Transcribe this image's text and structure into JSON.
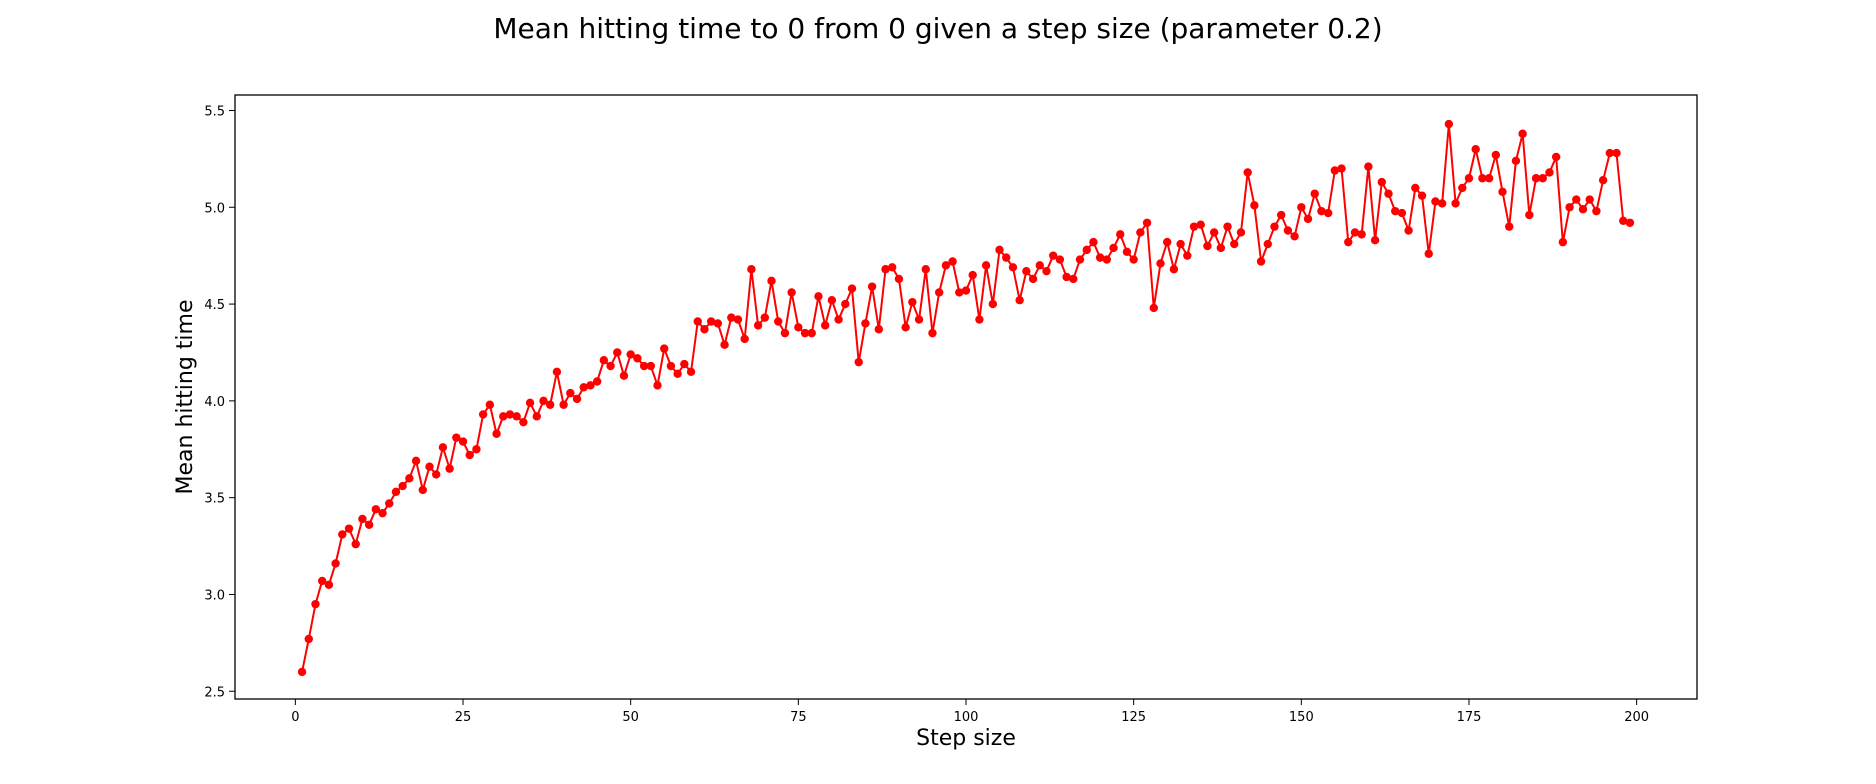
{
  "chart_data": {
    "type": "line",
    "title": "Mean hitting time to 0 from 0 given a step size (parameter 0.2)",
    "xlabel": "Step size",
    "ylabel": "Mean hitting time",
    "xlim": [
      -9,
      209
    ],
    "ylim": [
      2.46,
      5.58
    ],
    "xticks": [
      0,
      25,
      50,
      75,
      100,
      125,
      150,
      175,
      200
    ],
    "yticks": [
      2.5,
      3.0,
      3.5,
      4.0,
      4.5,
      5.0,
      5.5
    ],
    "xtick_labels": [
      "0",
      "25",
      "50",
      "75",
      "100",
      "125",
      "150",
      "175",
      "200"
    ],
    "ytick_labels": [
      "2.5",
      "3.0",
      "3.5",
      "4.0",
      "4.5",
      "5.0",
      "5.5"
    ],
    "grid": false,
    "legend": "none",
    "series": [
      {
        "color": "#ff0000",
        "marker": "circle",
        "x": [
          1,
          2,
          3,
          4,
          5,
          6,
          7,
          8,
          9,
          10,
          11,
          12,
          13,
          14,
          15,
          16,
          17,
          18,
          19,
          20,
          21,
          22,
          23,
          24,
          25,
          26,
          27,
          28,
          29,
          30,
          31,
          32,
          33,
          34,
          35,
          36,
          37,
          38,
          39,
          40,
          41,
          42,
          43,
          44,
          45,
          46,
          47,
          48,
          49,
          50,
          51,
          52,
          53,
          54,
          55,
          56,
          57,
          58,
          59,
          60,
          61,
          62,
          63,
          64,
          65,
          66,
          67,
          68,
          69,
          70,
          71,
          72,
          73,
          74,
          75,
          76,
          77,
          78,
          79,
          80,
          81,
          82,
          83,
          84,
          85,
          86,
          87,
          88,
          89,
          90,
          91,
          92,
          93,
          94,
          95,
          96,
          97,
          98,
          99,
          100,
          101,
          102,
          103,
          104,
          105,
          106,
          107,
          108,
          109,
          110,
          111,
          112,
          113,
          114,
          115,
          116,
          117,
          118,
          119,
          120,
          121,
          122,
          123,
          124,
          125,
          126,
          127,
          128,
          129,
          130,
          131,
          132,
          133,
          134,
          135,
          136,
          137,
          138,
          139,
          140,
          141,
          142,
          143,
          144,
          145,
          146,
          147,
          148,
          149,
          150,
          151,
          152,
          153,
          154,
          155,
          156,
          157,
          158,
          159,
          160,
          161,
          162,
          163,
          164,
          165,
          166,
          167,
          168,
          169,
          170,
          171,
          172,
          173,
          174,
          175,
          176,
          177,
          178,
          179,
          180,
          181,
          182,
          183,
          184,
          185,
          186,
          187,
          188,
          189,
          190,
          191,
          192,
          193,
          194,
          195,
          196,
          197,
          198,
          199
        ],
        "y": [
          2.6,
          2.77,
          2.95,
          3.07,
          3.05,
          3.16,
          3.31,
          3.34,
          3.26,
          3.39,
          3.36,
          3.44,
          3.42,
          3.47,
          3.53,
          3.56,
          3.6,
          3.69,
          3.54,
          3.66,
          3.62,
          3.76,
          3.65,
          3.81,
          3.79,
          3.72,
          3.75,
          3.93,
          3.98,
          3.83,
          3.92,
          3.93,
          3.92,
          3.89,
          3.99,
          3.92,
          4.0,
          3.98,
          4.15,
          3.98,
          4.04,
          4.01,
          4.07,
          4.08,
          4.1,
          4.21,
          4.18,
          4.25,
          4.13,
          4.24,
          4.22,
          4.18,
          4.18,
          4.08,
          4.27,
          4.18,
          4.14,
          4.19,
          4.15,
          4.41,
          4.37,
          4.41,
          4.4,
          4.29,
          4.43,
          4.42,
          4.32,
          4.68,
          4.39,
          4.43,
          4.62,
          4.41,
          4.35,
          4.56,
          4.38,
          4.35,
          4.35,
          4.54,
          4.39,
          4.52,
          4.42,
          4.5,
          4.58,
          4.2,
          4.4,
          4.59,
          4.37,
          4.68,
          4.69,
          4.63,
          4.38,
          4.51,
          4.42,
          4.68,
          4.35,
          4.56,
          4.7,
          4.72,
          4.56,
          4.57,
          4.65,
          4.42,
          4.7,
          4.5,
          4.78,
          4.74,
          4.69,
          4.52,
          4.67,
          4.63,
          4.7,
          4.67,
          4.75,
          4.73,
          4.64,
          4.63,
          4.73,
          4.78,
          4.82,
          4.74,
          4.73,
          4.79,
          4.86,
          4.77,
          4.73,
          4.87,
          4.92,
          4.48,
          4.71,
          4.82,
          4.68,
          4.81,
          4.75,
          4.9,
          4.91,
          4.8,
          4.87,
          4.79,
          4.9,
          4.81,
          4.87,
          5.18,
          5.01,
          4.72,
          4.81,
          4.9,
          4.96,
          4.88,
          4.85,
          5.0,
          4.94,
          5.07,
          4.98,
          4.97,
          5.19,
          5.2,
          4.82,
          4.87,
          4.86,
          5.21,
          4.83,
          5.13,
          5.07,
          4.98,
          4.97,
          4.88,
          5.1,
          5.06,
          4.76,
          5.03,
          5.02,
          5.43,
          5.02,
          5.1,
          5.15,
          5.3,
          5.15,
          5.15,
          5.27,
          5.08,
          4.9,
          5.24,
          5.38,
          4.96,
          5.15,
          5.15,
          5.18,
          5.26,
          4.82,
          5.0,
          5.04,
          4.99,
          5.04,
          4.98,
          5.14,
          5.28,
          5.28,
          4.93,
          4.92
        ]
      }
    ]
  }
}
